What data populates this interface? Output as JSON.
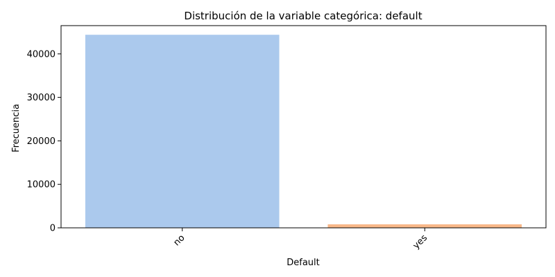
{
  "chart_data": {
    "type": "bar",
    "title": "Distribución de la variable categórica: default",
    "xlabel": "Default",
    "ylabel": "Frecuencia",
    "categories": [
      "no",
      "yes"
    ],
    "values": [
      44396,
      815
    ],
    "colors": [
      "#abc9ed",
      "#f8b889"
    ],
    "ylim": [
      0,
      46500
    ],
    "yticks": [
      0,
      10000,
      20000,
      30000,
      40000
    ],
    "ytick_labels": [
      "0",
      "10000",
      "20000",
      "30000",
      "40000"
    ],
    "xtick_rotation_deg": 45,
    "grid": false,
    "legend": "none"
  }
}
